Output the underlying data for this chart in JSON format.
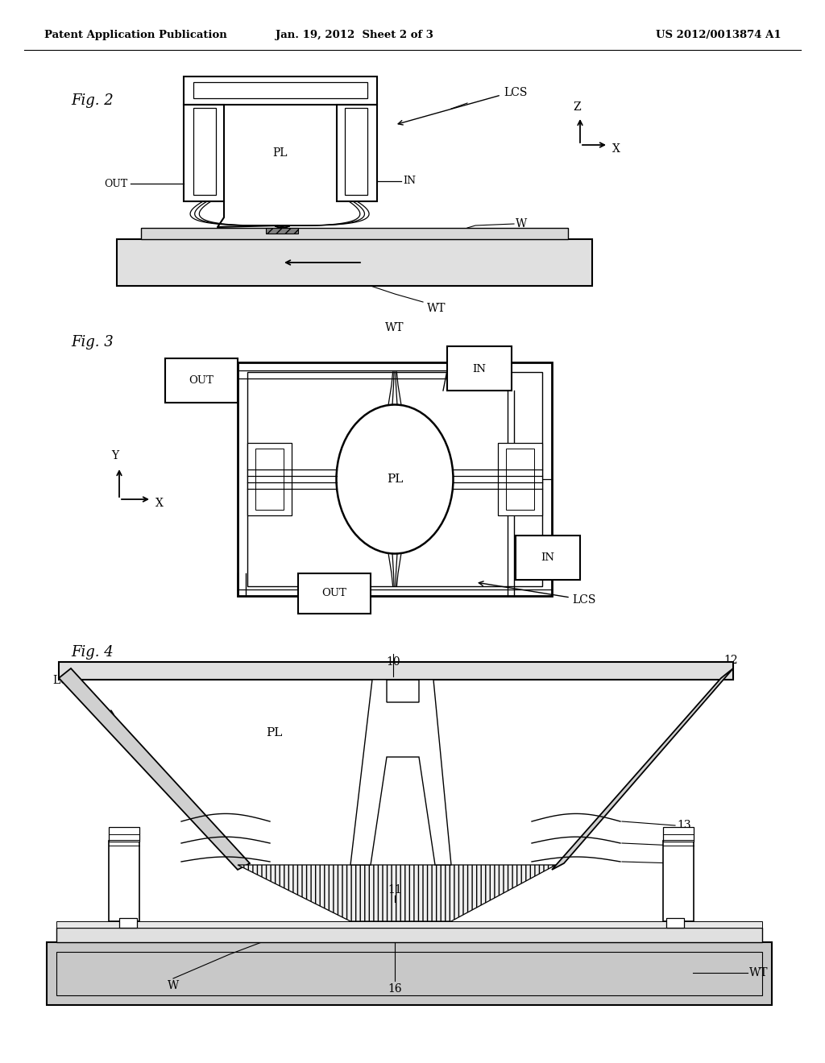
{
  "bg_color": "#ffffff",
  "text_color": "#000000",
  "line_color": "#000000",
  "header": {
    "left": "Patent Application Publication",
    "center": "Jan. 19, 2012  Sheet 2 of 3",
    "right": "US 2012/0013874 A1"
  }
}
